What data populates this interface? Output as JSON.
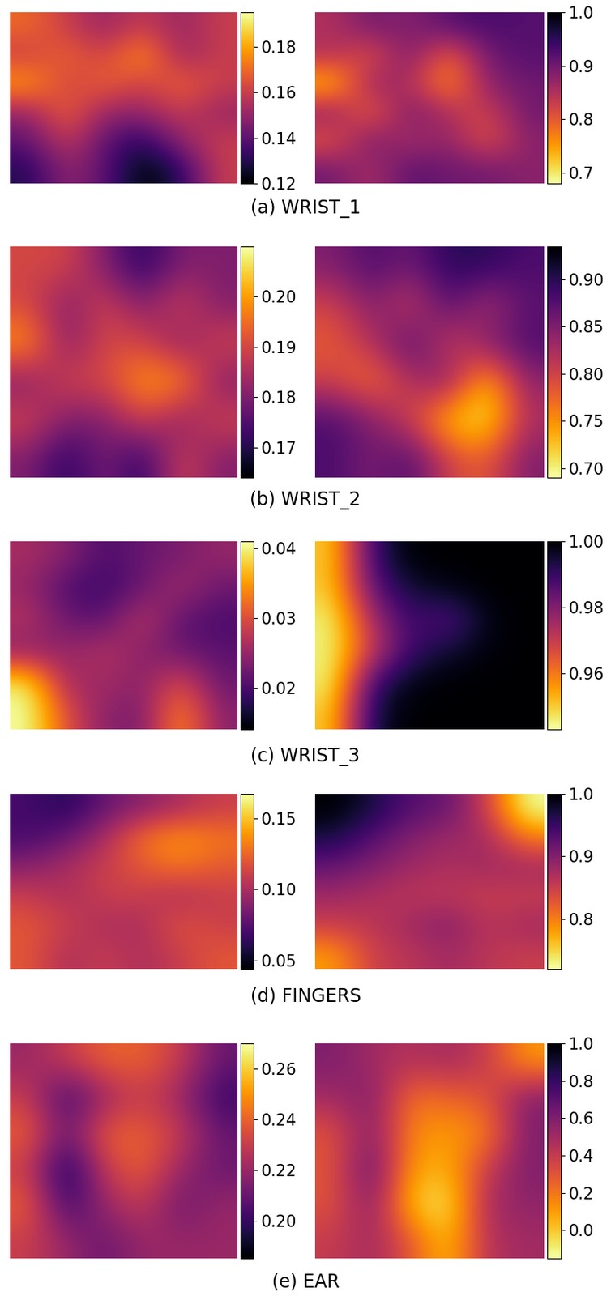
{
  "captions": [
    "(a) WRIST_1",
    "(b) WRIST_2",
    "(c) WRIST_3",
    "(d) FINGERS",
    "(e) EAR"
  ],
  "chart_data": [
    {
      "type": "heatmap",
      "color": "inferno",
      "tick_labels": false,
      "colorbar_range": [
        0.12,
        0.195
      ],
      "colorbar_ticks": [
        0.12,
        0.14,
        0.16,
        0.18
      ],
      "cells": [
        [
          0.17,
          0.16,
          0.15,
          0.16,
          0.15,
          0.16
        ],
        [
          0.16,
          0.17,
          0.16,
          0.18,
          0.15,
          0.16
        ],
        [
          0.18,
          0.16,
          0.17,
          0.16,
          0.17,
          0.16
        ],
        [
          0.15,
          0.17,
          0.15,
          0.15,
          0.16,
          0.15
        ],
        [
          0.14,
          0.16,
          0.14,
          0.13,
          0.15,
          0.16
        ],
        [
          0.13,
          0.15,
          0.14,
          0.12,
          0.13,
          0.16
        ]
      ]
    },
    {
      "type": "heatmap",
      "color": "inferno_r",
      "tick_labels": false,
      "colorbar_range": [
        0.68,
        1.0
      ],
      "colorbar_ticks": [
        0.7,
        0.8,
        0.9,
        1.0
      ],
      "cells": [
        [
          0.85,
          0.9,
          0.88,
          0.92,
          0.93,
          0.92
        ],
        [
          0.85,
          0.8,
          0.9,
          0.78,
          0.9,
          0.92
        ],
        [
          0.72,
          0.88,
          0.85,
          0.75,
          0.88,
          0.9
        ],
        [
          0.88,
          0.78,
          0.9,
          0.85,
          0.82,
          0.9
        ],
        [
          0.8,
          0.9,
          0.85,
          0.88,
          0.8,
          0.88
        ],
        [
          0.9,
          0.85,
          0.92,
          0.9,
          0.9,
          0.88
        ]
      ]
    },
    {
      "type": "heatmap",
      "color": "inferno",
      "tick_labels": false,
      "colorbar_range": [
        0.164,
        0.21
      ],
      "colorbar_ticks": [
        0.17,
        0.18,
        0.19,
        {
          "value": 0.2,
          "label": "0.20"
        }
      ],
      "cells": [
        [
          0.19,
          0.19,
          0.18,
          0.17,
          0.18,
          0.18
        ],
        [
          0.19,
          0.18,
          0.19,
          0.18,
          0.19,
          0.18
        ],
        [
          0.2,
          0.18,
          0.19,
          0.19,
          0.18,
          0.19
        ],
        [
          0.18,
          0.19,
          0.19,
          0.2,
          0.2,
          0.18
        ],
        [
          0.19,
          0.18,
          0.18,
          0.19,
          0.18,
          0.19
        ],
        [
          0.18,
          0.17,
          0.18,
          0.17,
          0.19,
          0.18
        ]
      ]
    },
    {
      "type": "heatmap",
      "color": "inferno_r",
      "tick_labels": false,
      "colorbar_range": [
        0.69,
        0.935
      ],
      "colorbar_ticks": [
        {
          "value": 0.7,
          "label": "0.70"
        },
        0.75,
        {
          "value": 0.8,
          "label": "0.80"
        },
        0.85,
        {
          "value": 0.9,
          "label": "0.90"
        }
      ],
      "cells": [
        [
          0.85,
          0.88,
          0.86,
          0.9,
          0.9,
          0.88
        ],
        [
          0.8,
          0.85,
          0.8,
          0.88,
          0.82,
          0.87
        ],
        [
          0.78,
          0.82,
          0.88,
          0.8,
          0.85,
          0.88
        ],
        [
          0.8,
          0.76,
          0.82,
          0.85,
          0.72,
          0.84
        ],
        [
          0.88,
          0.85,
          0.8,
          0.72,
          0.7,
          0.82
        ],
        [
          0.88,
          0.85,
          0.88,
          0.8,
          0.78,
          0.85
        ]
      ]
    },
    {
      "type": "heatmap",
      "color": "inferno",
      "tick_labels": false,
      "colorbar_range": [
        0.014,
        0.041
      ],
      "colorbar_ticks": [
        0.02,
        0.03,
        0.04
      ],
      "cells": [
        [
          0.026,
          0.024,
          0.02,
          0.022,
          0.023,
          0.025
        ],
        [
          0.025,
          0.02,
          0.019,
          0.022,
          0.026,
          0.022
        ],
        [
          0.027,
          0.022,
          0.021,
          0.028,
          0.021,
          0.02
        ],
        [
          0.024,
          0.025,
          0.027,
          0.024,
          0.022,
          0.021
        ],
        [
          0.04,
          0.025,
          0.026,
          0.024,
          0.03,
          0.022
        ],
        [
          0.041,
          0.03,
          0.024,
          0.023,
          0.035,
          0.024
        ]
      ]
    },
    {
      "type": "heatmap",
      "color": "inferno_r",
      "tick_labels": false,
      "colorbar_range": [
        0.943,
        1.0
      ],
      "colorbar_ticks": [
        0.96,
        0.98,
        {
          "value": 1.0,
          "label": "1.00"
        }
      ],
      "cells": [
        [
          0.95,
          0.99,
          1.0,
          1.0,
          1.0,
          1.0
        ],
        [
          0.95,
          0.985,
          0.995,
          0.998,
          1.0,
          1.0
        ],
        [
          0.945,
          0.975,
          0.99,
          0.985,
          0.998,
          1.0
        ],
        [
          0.945,
          0.97,
          0.99,
          0.995,
          0.999,
          1.0
        ],
        [
          0.945,
          0.99,
          0.998,
          1.0,
          1.0,
          1.0
        ],
        [
          0.95,
          0.995,
          1.0,
          1.0,
          1.0,
          1.0
        ]
      ]
    },
    {
      "type": "heatmap",
      "color": "inferno",
      "tick_labels": false,
      "colorbar_range": [
        0.044,
        0.167
      ],
      "colorbar_ticks": [
        0.05,
        {
          "value": 0.1,
          "label": "0.10"
        },
        0.15
      ],
      "cells": [
        [
          0.07,
          0.06,
          0.08,
          0.09,
          0.1,
          0.11
        ],
        [
          0.07,
          0.08,
          0.1,
          0.13,
          0.14,
          0.13
        ],
        [
          0.09,
          0.1,
          0.11,
          0.12,
          0.13,
          0.12
        ],
        [
          0.11,
          0.1,
          0.11,
          0.11,
          0.1,
          0.11
        ],
        [
          0.12,
          0.11,
          0.1,
          0.1,
          0.12,
          0.11
        ],
        [
          0.12,
          0.1,
          0.11,
          0.1,
          0.11,
          0.12
        ]
      ]
    },
    {
      "type": "heatmap",
      "color": "inferno_r",
      "tick_labels": false,
      "colorbar_range": [
        0.72,
        1.0
      ],
      "colorbar_ticks": [
        0.8,
        0.9,
        1.0
      ],
      "cells": [
        [
          1.0,
          0.97,
          0.93,
          0.92,
          0.85,
          0.72
        ],
        [
          0.97,
          0.93,
          0.9,
          0.88,
          0.88,
          0.8
        ],
        [
          0.92,
          0.9,
          0.88,
          0.87,
          0.88,
          0.88
        ],
        [
          0.88,
          0.87,
          0.86,
          0.86,
          0.85,
          0.85
        ],
        [
          0.85,
          0.86,
          0.88,
          0.9,
          0.86,
          0.88
        ],
        [
          0.78,
          0.85,
          0.86,
          0.88,
          0.86,
          0.85
        ]
      ]
    },
    {
      "type": "heatmap",
      "color": "inferno",
      "tick_labels": false,
      "colorbar_range": [
        0.185,
        0.27
      ],
      "colorbar_ticks": [
        {
          "value": 0.2,
          "label": "0.20"
        },
        0.22,
        0.24,
        0.26
      ],
      "cells": [
        [
          0.22,
          0.23,
          0.24,
          0.24,
          0.23,
          0.21
        ],
        [
          0.23,
          0.2,
          0.22,
          0.23,
          0.22,
          0.2
        ],
        [
          0.24,
          0.21,
          0.24,
          0.24,
          0.23,
          0.21
        ],
        [
          0.23,
          0.19,
          0.23,
          0.24,
          0.22,
          0.21
        ],
        [
          0.24,
          0.2,
          0.22,
          0.23,
          0.21,
          0.22
        ],
        [
          0.23,
          0.22,
          0.21,
          0.22,
          0.22,
          0.22
        ]
      ]
    },
    {
      "type": "heatmap",
      "color": "inferno_r",
      "tick_labels": false,
      "colorbar_range": [
        -0.15,
        1.0
      ],
      "colorbar_ticks": [
        0.0,
        0.2,
        0.4,
        0.6,
        0.8,
        1.0
      ],
      "cells": [
        [
          0.6,
          0.5,
          0.45,
          0.5,
          0.4,
          0.1
        ],
        [
          0.5,
          0.6,
          0.2,
          0.25,
          0.3,
          0.6
        ],
        [
          0.3,
          0.6,
          0.15,
          0.1,
          0.15,
          0.6
        ],
        [
          0.3,
          0.7,
          0.1,
          0.05,
          0.4,
          0.6
        ],
        [
          0.3,
          0.6,
          0.0,
          -0.1,
          0.5,
          0.55
        ],
        [
          0.4,
          0.5,
          0.3,
          0.0,
          0.45,
          0.5
        ]
      ]
    }
  ]
}
